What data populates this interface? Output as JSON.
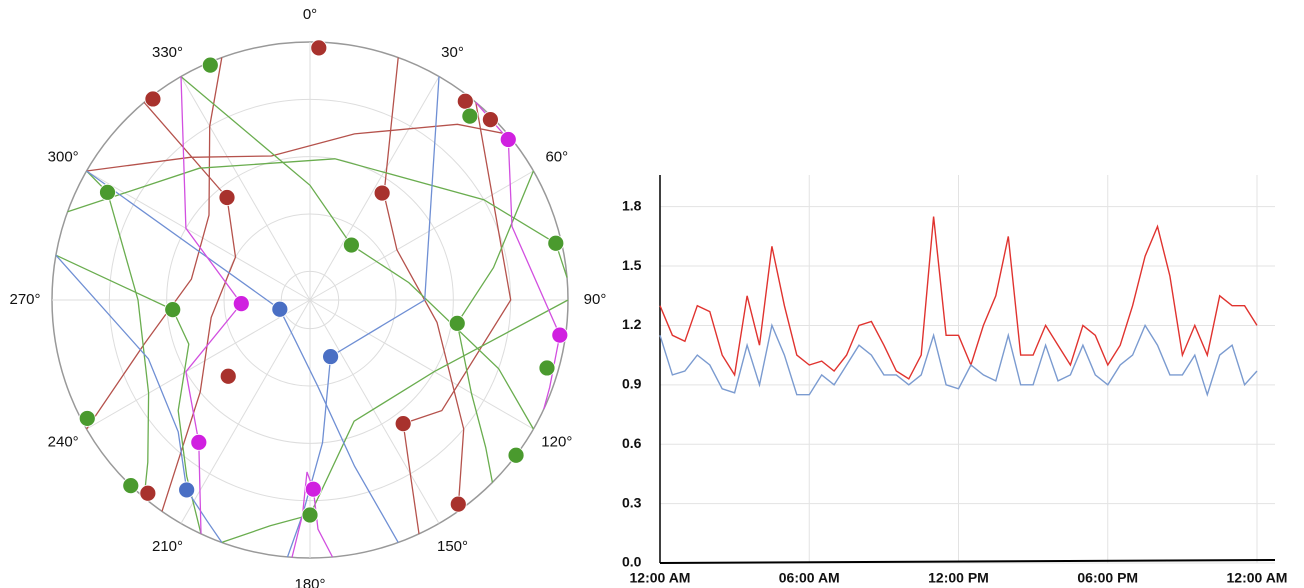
{
  "chart_data": [
    {
      "type": "polar",
      "azticks": [
        {
          "value": 0,
          "label": "0°"
        },
        {
          "value": 30,
          "label": "30°"
        },
        {
          "value": 60,
          "label": "60°"
        },
        {
          "value": 90,
          "label": "90°"
        },
        {
          "value": 120,
          "label": "120°"
        },
        {
          "value": 150,
          "label": "150°"
        },
        {
          "value": 180,
          "label": "180°"
        },
        {
          "value": 210,
          "label": "210°"
        },
        {
          "value": 240,
          "label": "240°"
        },
        {
          "value": 270,
          "label": "270°"
        },
        {
          "value": 300,
          "label": "300°"
        },
        {
          "value": 330,
          "label": "330°"
        }
      ],
      "rlim": [
        90,
        0
      ],
      "rticks": [
        0,
        20,
        40,
        60,
        80
      ],
      "tracks": [
        {
          "color": "#b5524c",
          "az": [
            300,
            320,
            345,
            15,
            40,
            50
          ],
          "el": [
            0,
            25,
            38,
            30,
            10,
            0
          ]
        },
        {
          "color": "#b5524c",
          "az": [
            240,
            255,
            280,
            310,
            330,
            340
          ],
          "el": [
            0,
            30,
            48,
            44,
            20,
            0
          ]
        },
        {
          "color": "#b5524c",
          "az": [
            20,
            35,
            60,
            100,
            130,
            145
          ],
          "el": [
            0,
            45,
            55,
            45,
            20,
            0
          ]
        },
        {
          "color": "#b5524c",
          "az": [
            320,
            321,
            300,
            260,
            230,
            215
          ],
          "el": [
            0,
            44,
            60,
            55,
            40,
            0
          ]
        },
        {
          "color": "#b5524c",
          "az": [
            40,
            90,
            130,
            143,
            150,
            155
          ],
          "el": [
            0,
            20,
            30,
            36,
            20,
            0
          ]
        },
        {
          "color": "#6aad4f",
          "az": [
            330,
            0,
            37,
            80,
            110,
            120
          ],
          "el": [
            0,
            50,
            66,
            55,
            20,
            0
          ]
        },
        {
          "color": "#6aad4f",
          "az": [
            280,
            266,
            250,
            230,
            215,
            205
          ],
          "el": [
            0,
            42,
            45,
            30,
            15,
            0
          ]
        },
        {
          "color": "#6aad4f",
          "az": [
            60,
            80,
            99,
            120,
            130,
            135
          ],
          "el": [
            0,
            25,
            38,
            25,
            10,
            0
          ]
        },
        {
          "color": "#6aad4f",
          "az": [
            300,
            298,
            270,
            240,
            225,
            220
          ],
          "el": [
            0,
            10,
            30,
            25,
            10,
            0
          ]
        },
        {
          "color": "#6aad4f",
          "az": [
            90,
            120,
            160,
            180,
            190,
            200
          ],
          "el": [
            0,
            40,
            45,
            15,
            10,
            0
          ]
        },
        {
          "color": "#6aad4f",
          "az": [
            290,
            320,
            10,
            60,
            77,
            85
          ],
          "el": [
            0,
            30,
            40,
            20,
            2,
            0
          ]
        },
        {
          "color": "#6f8fd4",
          "az": [
            300,
            253,
            200,
            175,
            165,
            160
          ],
          "el": [
            0,
            79,
            75,
            60,
            30,
            0
          ]
        },
        {
          "color": "#6f8fd4",
          "az": [
            30,
            90,
            160,
            175,
            182,
            185
          ],
          "el": [
            0,
            50,
            69,
            40,
            15,
            0
          ]
        },
        {
          "color": "#6f8fd4",
          "az": [
            280,
            250,
            225,
            213,
            205,
            200
          ],
          "el": [
            0,
            30,
            25,
            11,
            5,
            0
          ]
        },
        {
          "color": "#d24fe0",
          "az": [
            330,
            300,
            267,
            240,
            218,
            205
          ],
          "el": [
            0,
            40,
            66,
            40,
            27,
            0
          ]
        },
        {
          "color": "#d24fe0",
          "az": [
            40,
            51,
            70,
            98,
            110,
            115
          ],
          "el": [
            0,
            1,
            15,
            2,
            1,
            0
          ]
        },
        {
          "color": "#d24fe0",
          "az": [
            175,
            178,
            179,
            181,
            182,
            184
          ],
          "el": [
            0,
            10,
            24,
            30,
            15,
            0
          ]
        }
      ],
      "points": [
        {
          "color": "#a8322d",
          "az": [
            2,
            322,
            38,
            45,
            321,
            34,
            227,
            143,
            220,
            144
          ],
          "el": [
            2,
            1,
            2,
            1,
            44,
            45,
            51,
            36,
            2,
            2
          ]
        },
        {
          "color": "#4a9a2e",
          "az": [
            337,
            41,
            298,
            77,
            37,
            266,
            99,
            106,
            242,
            127,
            224,
            180
          ],
          "el": [
            1,
            5,
            10,
            2,
            66,
            42,
            38,
            4,
            2,
            0,
            0,
            15
          ]
        },
        {
          "color": "#4a6fc4",
          "az": [
            253,
            160,
            213
          ],
          "el": [
            79,
            69,
            11
          ]
        },
        {
          "color": "#d020e0",
          "az": [
            51,
            267,
            98,
            218,
            179
          ],
          "el": [
            1,
            66,
            2,
            27,
            24
          ]
        }
      ]
    },
    {
      "type": "line",
      "x": [
        0,
        0.5,
        1,
        1.5,
        2,
        2.5,
        3,
        3.5,
        4,
        4.5,
        5,
        5.5,
        6,
        6.5,
        7,
        7.5,
        8,
        8.5,
        9,
        9.5,
        10,
        10.5,
        11,
        11.5,
        12,
        12.5,
        13,
        13.5,
        14,
        14.5,
        15,
        15.5,
        16,
        16.5,
        17,
        17.5,
        18,
        18.5,
        19,
        19.5,
        20,
        20.5,
        21,
        21.5,
        22,
        22.5,
        23,
        23.5,
        24
      ],
      "series": [
        {
          "color": "#e0332f",
          "values": [
            1.3,
            1.15,
            1.12,
            1.3,
            1.27,
            1.05,
            0.95,
            1.35,
            1.1,
            1.6,
            1.3,
            1.05,
            1.0,
            1.02,
            0.97,
            1.05,
            1.2,
            1.22,
            1.1,
            0.97,
            0.93,
            1.05,
            1.75,
            1.15,
            1.15,
            1.0,
            1.2,
            1.35,
            1.65,
            1.05,
            1.05,
            1.2,
            1.1,
            1.0,
            1.2,
            1.15,
            1.0,
            1.1,
            1.3,
            1.55,
            1.7,
            1.45,
            1.05,
            1.2,
            1.05,
            1.35,
            1.3,
            1.3,
            1.2
          ]
        },
        {
          "color": "#7b9bd0",
          "values": [
            1.15,
            0.95,
            0.97,
            1.05,
            1.0,
            0.88,
            0.86,
            1.1,
            0.9,
            1.2,
            1.05,
            0.85,
            0.85,
            0.95,
            0.9,
            1.0,
            1.1,
            1.05,
            0.95,
            0.95,
            0.9,
            0.95,
            1.15,
            0.9,
            0.88,
            1.0,
            0.95,
            0.92,
            1.15,
            0.9,
            0.9,
            1.1,
            0.92,
            0.95,
            1.1,
            0.95,
            0.9,
            1.0,
            1.05,
            1.2,
            1.1,
            0.95,
            0.95,
            1.05,
            0.85,
            1.05,
            1.1,
            0.9,
            0.97
          ]
        }
      ],
      "xlim": [
        0,
        24
      ],
      "xticks": [
        {
          "value": 0,
          "label": "12:00 AM"
        },
        {
          "value": 6,
          "label": "06:00 AM"
        },
        {
          "value": 12,
          "label": "12:00 PM"
        },
        {
          "value": 18,
          "label": "06:00 PM"
        },
        {
          "value": 24,
          "label": "12:00 AM"
        }
      ],
      "ylim": [
        0,
        1.96
      ],
      "yticks": [
        {
          "value": 0,
          "label": "0.0"
        },
        0.3,
        0.6,
        0.9,
        1.2,
        1.5,
        1.8
      ],
      "grid": true
    }
  ]
}
